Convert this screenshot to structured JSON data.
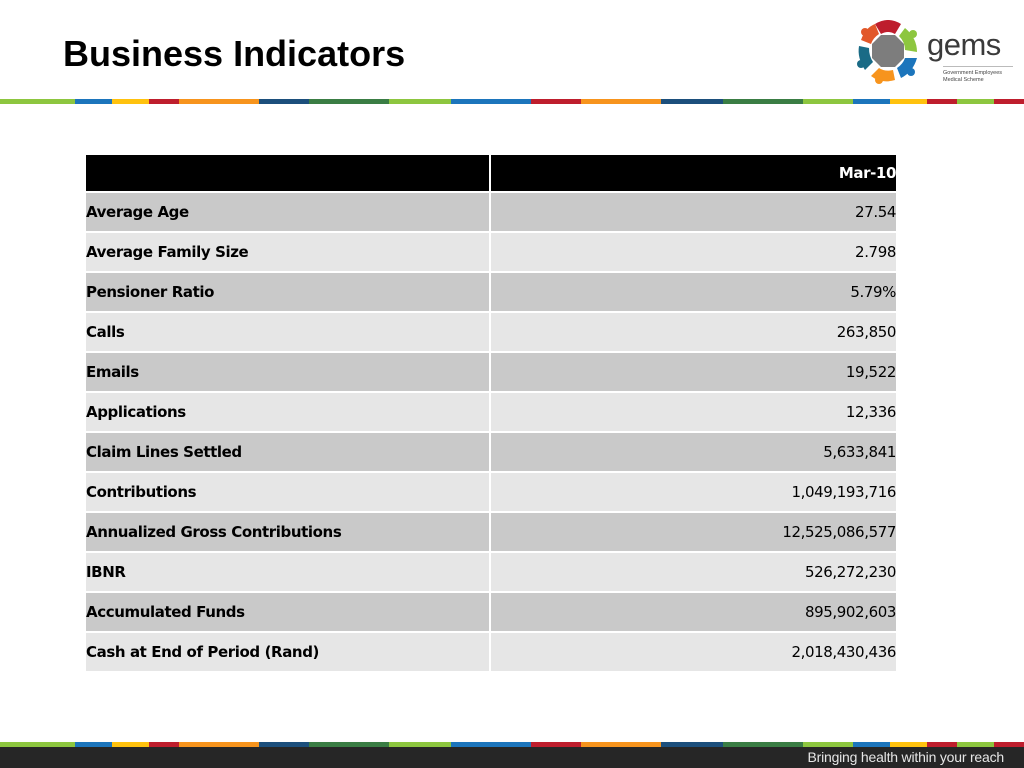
{
  "slide": {
    "title": "Business Indicators",
    "tagline": "Bringing health within your reach"
  },
  "logo": {
    "word": "gems",
    "subtitle_line1": "Government Employees",
    "subtitle_line2": "Medical Scheme"
  },
  "colors": {
    "stripe": [
      "#8dc63f",
      "#1c75bc",
      "#ffc20e",
      "#be1e2d",
      "#1c75bc",
      "#8dc63f",
      "#f7941d",
      "#be1e2d",
      "#1c75bc",
      "#8dc63f",
      "#be1e2d"
    ],
    "header_bg": "#000000",
    "row_dark": "#c9c9c9",
    "row_light": "#e6e6e6"
  },
  "table": {
    "header": {
      "label": "",
      "value": "Mar-10"
    },
    "rows": [
      {
        "label": "Average Age",
        "value": "27.54"
      },
      {
        "label": "Average Family Size",
        "value": "2.798"
      },
      {
        "label": "Pensioner Ratio",
        "value": "5.79%"
      },
      {
        "label": "Calls",
        "value": "263,850"
      },
      {
        "label": "Emails",
        "value": "19,522"
      },
      {
        "label": "Applications",
        "value": "12,336"
      },
      {
        "label": "Claim Lines Settled",
        "value": "5,633,841"
      },
      {
        "label": "Contributions",
        "value": "1,049,193,716"
      },
      {
        "label": "Annualized Gross Contributions",
        "value": "12,525,086,577"
      },
      {
        "label": "IBNR",
        "value": "526,272,230"
      },
      {
        "label": "Accumulated Funds",
        "value": "895,902,603"
      },
      {
        "label": "Cash at End of Period (Rand)",
        "value": "2,018,430,436"
      }
    ]
  }
}
